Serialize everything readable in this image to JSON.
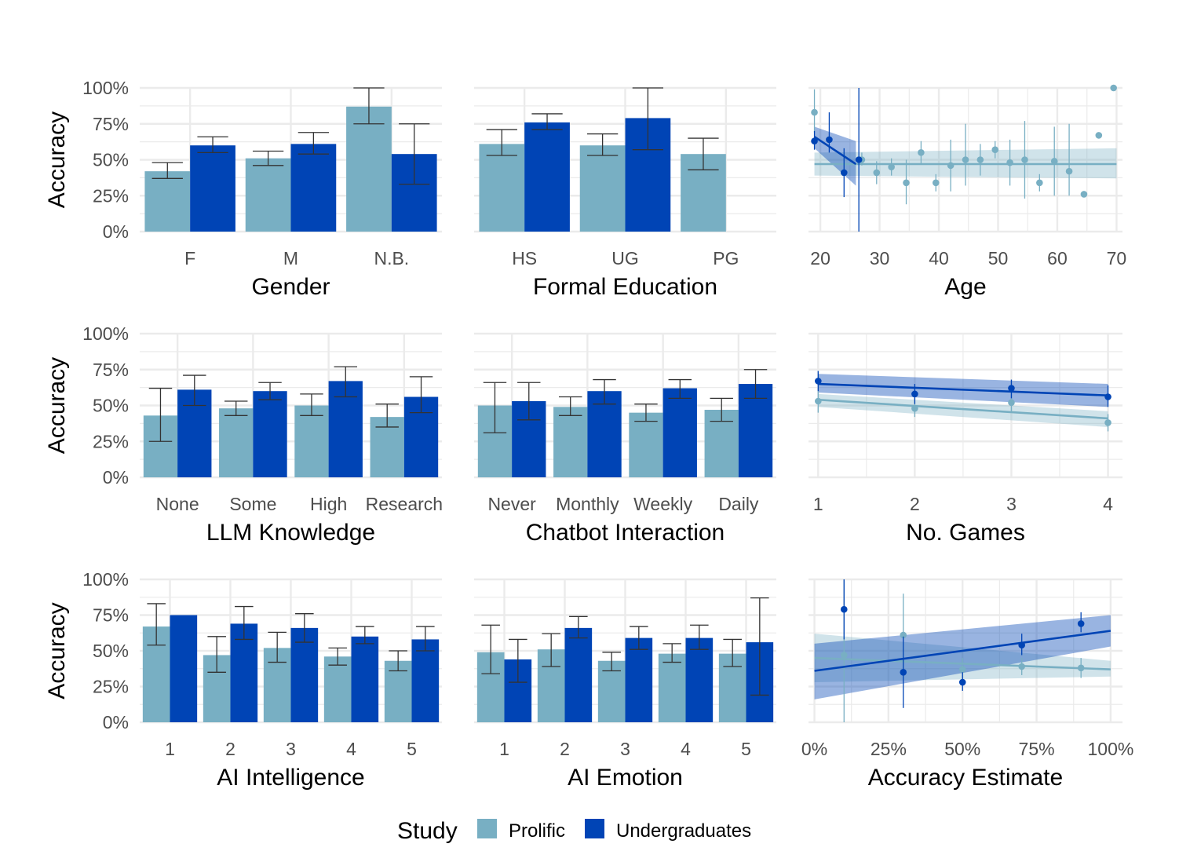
{
  "colors": {
    "prolific": "#78afc3",
    "undergraduates": "#0044b5",
    "grid": "#ebebeb",
    "errorbar": "#333333"
  },
  "legend": {
    "title": "Study",
    "items": [
      "Prolific",
      "Undergraduates"
    ]
  },
  "y_axis_label": "Accuracy",
  "chart_data": [
    {
      "type": "bar",
      "title": "",
      "xlabel": "Gender",
      "ylabel": "Accuracy",
      "ylim": [
        0,
        1
      ],
      "yticks": [
        "0%",
        "25%",
        "50%",
        "75%",
        "100%"
      ],
      "categories": [
        "F",
        "M",
        "N.B."
      ],
      "series": [
        {
          "name": "Prolific",
          "values": [
            0.42,
            0.51,
            0.87
          ],
          "err_lo": [
            0.37,
            0.46,
            0.75
          ],
          "err_hi": [
            0.48,
            0.56,
            1.0
          ]
        },
        {
          "name": "Undergraduates",
          "values": [
            0.6,
            0.61,
            0.54
          ],
          "err_lo": [
            0.55,
            0.54,
            0.33
          ],
          "err_hi": [
            0.66,
            0.69,
            0.75
          ]
        }
      ]
    },
    {
      "type": "bar",
      "title": "",
      "xlabel": "Formal Education",
      "ylabel": "",
      "ylim": [
        0,
        1
      ],
      "categories": [
        "HS",
        "UG",
        "PG"
      ],
      "series": [
        {
          "name": "Prolific",
          "values": [
            0.61,
            0.6,
            0.54
          ],
          "err_lo": [
            0.53,
            0.53,
            0.43
          ],
          "err_hi": [
            0.71,
            0.68,
            0.65
          ]
        },
        {
          "name": "Undergraduates",
          "values": [
            0.76,
            0.79,
            null
          ],
          "err_lo": [
            0.71,
            0.57,
            null
          ],
          "err_hi": [
            0.82,
            1.0,
            null
          ]
        }
      ]
    },
    {
      "type": "scatter",
      "title": "",
      "xlabel": "Age",
      "ylabel": "",
      "xlim": [
        18,
        71
      ],
      "ylim": [
        0,
        1
      ],
      "xticks": [
        20,
        30,
        40,
        50,
        60,
        70
      ],
      "series": [
        {
          "name": "Prolific",
          "x": [
            19,
            27,
            29.5,
            32,
            34.5,
            37,
            39.5,
            42,
            44.5,
            47,
            49.5,
            52,
            54.5,
            57,
            59.5,
            62,
            64.5,
            67,
            69.5
          ],
          "y": [
            0.83,
            0.5,
            0.41,
            0.45,
            0.34,
            0.55,
            0.34,
            0.46,
            0.5,
            0.5,
            0.57,
            0.48,
            0.5,
            0.34,
            0.49,
            0.42,
            0.26,
            0.67,
            1.0
          ],
          "err_lo": [
            0.69,
            0.46,
            0.33,
            0.39,
            0.19,
            0.47,
            0.28,
            0.28,
            0.32,
            0.39,
            0.51,
            0.32,
            0.23,
            0.28,
            0.25,
            0.25,
            0.25,
            0.67,
            1.0
          ],
          "err_hi": [
            0.99,
            0.55,
            0.49,
            0.51,
            0.5,
            0.63,
            0.4,
            0.64,
            0.75,
            0.61,
            0.63,
            0.64,
            0.77,
            0.4,
            0.73,
            0.75,
            0.27,
            0.67,
            1.0
          ],
          "fit": {
            "x": [
              19,
              70
            ],
            "y": [
              0.47,
              0.47
            ],
            "band_lo": [
              0.39,
              0.37
            ],
            "band_hi": [
              0.55,
              0.58
            ]
          }
        },
        {
          "name": "Undergraduates",
          "x": [
            19,
            21.5,
            24,
            26.5
          ],
          "y": [
            0.63,
            0.64,
            0.41,
            0.5
          ],
          "err_lo": [
            0.57,
            0.55,
            0.24,
            0.0
          ],
          "err_hi": [
            0.7,
            0.83,
            0.58,
            1.0
          ],
          "fit": {
            "x": [
              19,
              26
            ],
            "y": [
              0.66,
              0.47
            ],
            "band_lo": [
              0.58,
              0.32
            ],
            "band_hi": [
              0.73,
              0.63
            ]
          }
        }
      ]
    },
    {
      "type": "bar",
      "title": "",
      "xlabel": "LLM Knowledge",
      "ylabel": "Accuracy",
      "ylim": [
        0,
        1
      ],
      "yticks": [
        "0%",
        "25%",
        "50%",
        "75%",
        "100%"
      ],
      "categories": [
        "None",
        "Some",
        "High",
        "Research"
      ],
      "series": [
        {
          "name": "Prolific",
          "values": [
            0.43,
            0.48,
            0.5,
            0.42
          ],
          "err_lo": [
            0.25,
            0.43,
            0.43,
            0.35
          ],
          "err_hi": [
            0.62,
            0.53,
            0.58,
            0.51
          ]
        },
        {
          "name": "Undergraduates",
          "values": [
            0.61,
            0.6,
            0.67,
            0.56
          ],
          "err_lo": [
            0.5,
            0.54,
            0.56,
            0.45
          ],
          "err_hi": [
            0.71,
            0.66,
            0.77,
            0.7
          ]
        }
      ]
    },
    {
      "type": "bar",
      "title": "",
      "xlabel": "Chatbot Interaction",
      "ylabel": "",
      "ylim": [
        0,
        1
      ],
      "categories": [
        "Never",
        "Monthly",
        "Weekly",
        "Daily"
      ],
      "series": [
        {
          "name": "Prolific",
          "values": [
            0.5,
            0.49,
            0.45,
            0.47
          ],
          "err_lo": [
            0.31,
            0.43,
            0.39,
            0.39
          ],
          "err_hi": [
            0.66,
            0.56,
            0.51,
            0.55
          ]
        },
        {
          "name": "Undergraduates",
          "values": [
            0.53,
            0.6,
            0.62,
            0.65
          ],
          "err_lo": [
            0.4,
            0.51,
            0.55,
            0.55
          ],
          "err_hi": [
            0.66,
            0.68,
            0.68,
            0.75
          ]
        }
      ]
    },
    {
      "type": "scatter",
      "title": "",
      "xlabel": "No. Games",
      "ylabel": "",
      "xlim": [
        0.9,
        4.15
      ],
      "ylim": [
        0,
        1
      ],
      "xticks": [
        1,
        2,
        3,
        4
      ],
      "series": [
        {
          "name": "Prolific",
          "x": [
            1,
            2,
            3,
            4
          ],
          "y": [
            0.53,
            0.48,
            0.52,
            0.38
          ],
          "err_lo": [
            0.45,
            0.42,
            0.46,
            0.32
          ],
          "err_hi": [
            0.6,
            0.55,
            0.57,
            0.44
          ],
          "fit": {
            "x": [
              1,
              4
            ],
            "y": [
              0.54,
              0.41
            ],
            "band_lo": [
              0.49,
              0.35
            ],
            "band_hi": [
              0.58,
              0.46
            ]
          }
        },
        {
          "name": "Undergraduates",
          "x": [
            1,
            2,
            3,
            4
          ],
          "y": [
            0.67,
            0.58,
            0.62,
            0.56
          ],
          "err_lo": [
            0.6,
            0.51,
            0.55,
            0.49
          ],
          "err_hi": [
            0.74,
            0.65,
            0.68,
            0.64
          ],
          "fit": {
            "x": [
              1,
              4
            ],
            "y": [
              0.65,
              0.57
            ],
            "band_lo": [
              0.59,
              0.49
            ],
            "band_hi": [
              0.72,
              0.65
            ]
          }
        }
      ]
    },
    {
      "type": "bar",
      "title": "",
      "xlabel": "AI Intelligence",
      "ylabel": "Accuracy",
      "ylim": [
        0,
        1
      ],
      "yticks": [
        "0%",
        "25%",
        "50%",
        "75%",
        "100%"
      ],
      "categories": [
        "1",
        "2",
        "3",
        "4",
        "5"
      ],
      "series": [
        {
          "name": "Prolific",
          "values": [
            0.67,
            0.47,
            0.52,
            0.46,
            0.43
          ],
          "err_lo": [
            0.54,
            0.35,
            0.42,
            0.4,
            0.36
          ],
          "err_hi": [
            0.83,
            0.6,
            0.63,
            0.52,
            0.5
          ]
        },
        {
          "name": "Undergraduates",
          "values": [
            0.75,
            0.69,
            0.66,
            0.6,
            0.58
          ],
          "err_lo": [
            null,
            0.58,
            0.56,
            0.55,
            0.5
          ],
          "err_hi": [
            null,
            0.81,
            0.76,
            0.67,
            0.67
          ]
        }
      ]
    },
    {
      "type": "bar",
      "title": "",
      "xlabel": "AI Emotion",
      "ylabel": "",
      "ylim": [
        0,
        1
      ],
      "categories": [
        "1",
        "2",
        "3",
        "4",
        "5"
      ],
      "series": [
        {
          "name": "Prolific",
          "values": [
            0.49,
            0.51,
            0.43,
            0.48,
            0.48
          ],
          "err_lo": [
            0.34,
            0.39,
            0.36,
            0.42,
            0.39
          ],
          "err_hi": [
            0.68,
            0.62,
            0.49,
            0.55,
            0.58
          ]
        },
        {
          "name": "Undergraduates",
          "values": [
            0.44,
            0.66,
            0.59,
            0.59,
            0.56
          ],
          "err_lo": [
            0.28,
            0.59,
            0.51,
            0.51,
            0.19
          ],
          "err_hi": [
            0.58,
            0.74,
            0.67,
            0.68,
            0.87
          ]
        }
      ]
    },
    {
      "type": "scatter",
      "title": "",
      "xlabel": "Accuracy Estimate",
      "ylabel": "",
      "xlim": [
        -0.02,
        1.04
      ],
      "ylim": [
        0,
        1
      ],
      "xticks": [
        "0%",
        "25%",
        "50%",
        "75%",
        "100%"
      ],
      "xtick_values": [
        0,
        0.25,
        0.5,
        0.75,
        1.0
      ],
      "series": [
        {
          "name": "Prolific",
          "x": [
            0.1,
            0.3,
            0.5,
            0.7,
            0.9
          ],
          "y": [
            0.47,
            0.61,
            0.37,
            0.39,
            0.38
          ],
          "err_lo": [
            0.0,
            0.31,
            0.3,
            0.33,
            0.31
          ],
          "err_hi": [
            1.0,
            0.9,
            0.45,
            0.45,
            0.45
          ],
          "fit": {
            "x": [
              0,
              1
            ],
            "y": [
              0.45,
              0.37
            ],
            "band_lo": [
              0.28,
              0.32
            ],
            "band_hi": [
              0.62,
              0.43
            ]
          }
        },
        {
          "name": "Undergraduates",
          "x": [
            0.1,
            0.3,
            0.5,
            0.7,
            0.9
          ],
          "y": [
            0.79,
            0.35,
            0.28,
            0.54,
            0.69
          ],
          "err_lo": [
            0.58,
            0.1,
            0.22,
            0.47,
            0.63
          ],
          "err_hi": [
            1.0,
            0.6,
            0.35,
            0.62,
            0.77
          ],
          "fit": {
            "x": [
              0,
              1
            ],
            "y": [
              0.36,
              0.64
            ],
            "band_lo": [
              0.16,
              0.53
            ],
            "band_hi": [
              0.55,
              0.75
            ]
          }
        }
      ]
    }
  ]
}
